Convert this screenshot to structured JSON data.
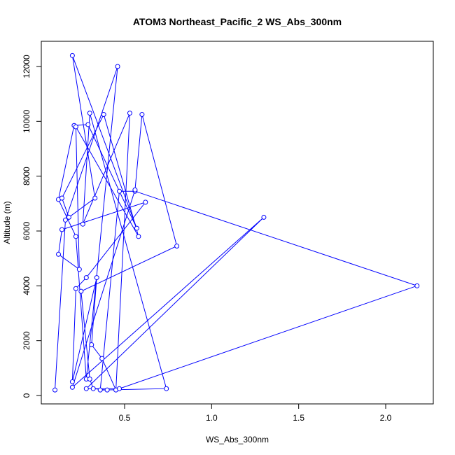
{
  "chart_data": {
    "type": "line",
    "title": "ATOM3 Northeast_Pacific_2 WS_Abs_300nm",
    "xlabel": "WS_Abs_300nm",
    "ylabel": "Altitude (m)",
    "xlim": [
      0.08,
      2.2
    ],
    "ylim": [
      0,
      12500
    ],
    "xticks": [
      0.5,
      1.0,
      1.5,
      2.0
    ],
    "xtick_labels": [
      "0.5",
      "1.0",
      "1.5",
      "2.0"
    ],
    "yticks": [
      0,
      2000,
      4000,
      6000,
      8000,
      10000,
      12000
    ],
    "ytick_labels": [
      "0",
      "2000",
      "4000",
      "6000",
      "8000",
      "10000",
      "12000"
    ],
    "grid": false,
    "line_color": "#0000ff",
    "marker": "open-circle",
    "series": [
      {
        "x": [
          0.1,
          0.16,
          0.46,
          0.28,
          0.22,
          0.12,
          0.21,
          0.29,
          0.57,
          0.2,
          0.33,
          0.18,
          0.14,
          0.38,
          0.58,
          0.22,
          0.24,
          0.12,
          0.14,
          0.62,
          0.28,
          0.22,
          0.2,
          0.34,
          0.31,
          0.37,
          0.45,
          0.53,
          0.26,
          0.3,
          0.74,
          0.36,
          0.47,
          0.56,
          2.18,
          0.47,
          0.28,
          1.3,
          0.2,
          0.56,
          0.6,
          0.8,
          0.25,
          0.3,
          0.32,
          0.4
        ],
        "y": [
          200,
          6400,
          12000,
          600,
          5800,
          7150,
          9850,
          9880,
          6100,
          12400,
          7200,
          6500,
          7200,
          10250,
          5800,
          9800,
          4600,
          5150,
          6050,
          7050,
          4300,
          3900,
          500,
          4300,
          1850,
          1350,
          200,
          10300,
          6250,
          10300,
          250,
          200,
          7450,
          7450,
          4000,
          250,
          250,
          6500,
          300,
          7500,
          10250,
          5450,
          3800,
          600,
          250,
          200
        ]
      }
    ]
  }
}
